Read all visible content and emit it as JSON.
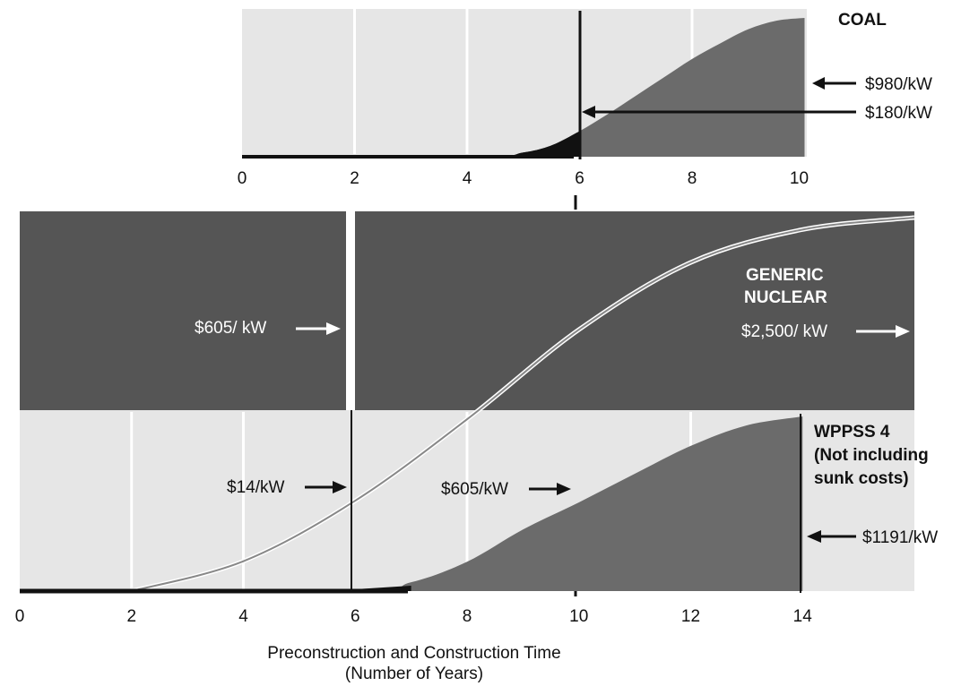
{
  "colors": {
    "light_panel": "#e6e6e6",
    "dark_panel": "#555555",
    "medium_fill": "#6b6b6b",
    "black": "#111111",
    "white": "#ffffff"
  },
  "chart_data": [
    {
      "type": "area",
      "name": "coal",
      "label": "COAL",
      "x_ticks": [
        "0",
        "2",
        "4",
        "6",
        "8",
        "10"
      ],
      "xlim": [
        0,
        10
      ],
      "cost_curve": {
        "x": [
          0,
          4.2,
          5,
          5.5,
          6,
          6.5,
          7,
          7.5,
          8,
          8.5,
          9,
          9.5,
          10
        ],
        "y": [
          0,
          0,
          30,
          80,
          180,
          300,
          430,
          560,
          690,
          800,
          900,
          960,
          980
        ]
      },
      "annotations": [
        {
          "text": "$980/kW",
          "x": 10,
          "value": 980
        },
        {
          "text": "$180/kW",
          "x": 6,
          "value": 180
        }
      ]
    },
    {
      "type": "area",
      "name": "generic-nuclear",
      "label_line1": "GENERIC",
      "label_line2": "NUCLEAR",
      "xlim": [
        0,
        16
      ],
      "cost_curve": {
        "x": [
          2,
          4,
          6,
          8,
          10,
          12,
          14,
          16
        ],
        "y": [
          0,
          200,
          605,
          1150,
          1750,
          2200,
          2420,
          2500
        ]
      },
      "annotations": [
        {
          "text": "$605/ kW",
          "x": 6,
          "value": 605
        },
        {
          "text": "$2,500/ kW",
          "x": 16,
          "value": 2500
        }
      ]
    },
    {
      "type": "area",
      "name": "wppss-4",
      "label_line1": "WPPSS 4",
      "label_line2": "(Not including",
      "label_line3": "sunk costs)",
      "x_ticks": [
        "0",
        "2",
        "4",
        "6",
        "8",
        "10",
        "12",
        "14"
      ],
      "xlim": [
        0,
        16
      ],
      "cost_curve": {
        "x": [
          0,
          6,
          7,
          8,
          9,
          10,
          11,
          12,
          13,
          14
        ],
        "y": [
          0,
          14,
          60,
          200,
          420,
          605,
          800,
          990,
          1130,
          1191
        ]
      },
      "annotations": [
        {
          "text": "$14/kW",
          "x": 6,
          "value": 14
        },
        {
          "text": "$605/kW",
          "x": 10,
          "value": 605
        },
        {
          "text": "$1191/kW",
          "x": 14,
          "value": 1191
        }
      ]
    }
  ],
  "xlabel_line1": "Preconstruction and Construction Time",
  "xlabel_line2": "(Number of Years)"
}
